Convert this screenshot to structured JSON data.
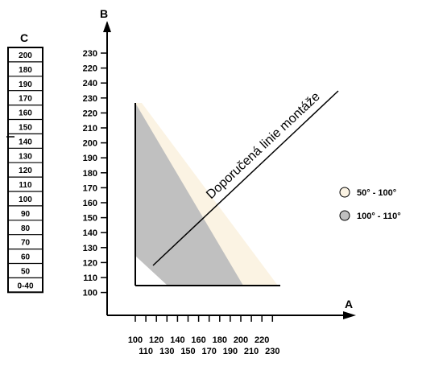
{
  "guide_label": "Doporučená linie montáže",
  "axis_b": {
    "name": "B",
    "values": [
      "230",
      "220",
      "240",
      "230",
      "220",
      "210",
      "200",
      "190",
      "180",
      "170",
      "160",
      "150",
      "140",
      "130",
      "120",
      "110",
      "100"
    ]
  },
  "axis_a": {
    "name": "A",
    "upper": [
      "100",
      "120",
      "140",
      "160",
      "180",
      "200",
      "220"
    ],
    "lower": [
      "110",
      "130",
      "150",
      "170",
      "190",
      "210",
      "230"
    ]
  },
  "table_c": {
    "name": "C",
    "values": [
      "200",
      "180",
      "190",
      "170",
      "160",
      "150",
      "140",
      "130",
      "120",
      "110",
      "100",
      "90",
      "80",
      "70",
      "60",
      "50",
      "0-40"
    ]
  },
  "legend": [
    {
      "name": "light-range",
      "label": "50° - 100°",
      "color": "#fbf3e3"
    },
    {
      "name": "grey-range",
      "label": "100° - 110°",
      "color": "#c0c0c0"
    }
  ]
}
